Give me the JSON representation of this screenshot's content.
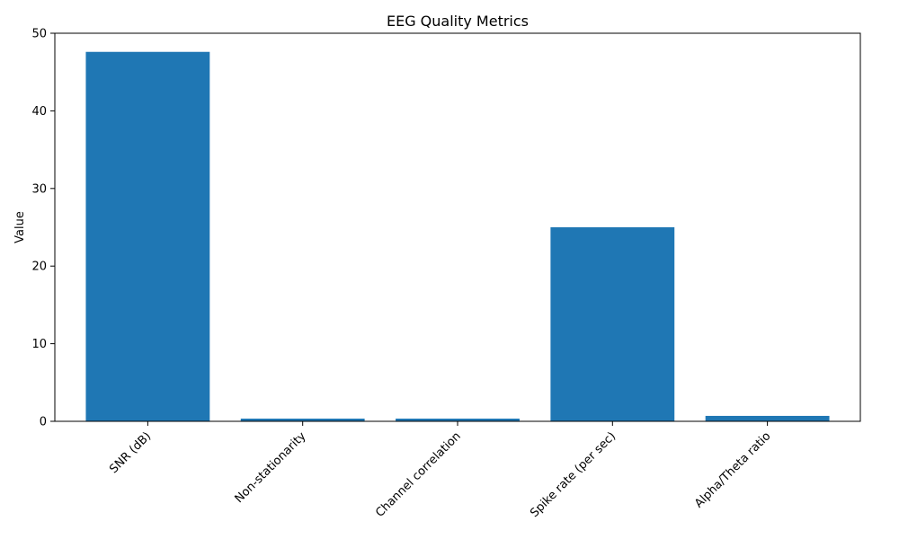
{
  "chart_data": {
    "type": "bar",
    "title": "EEG Quality Metrics",
    "xlabel": "",
    "ylabel": "Value",
    "categories": [
      "SNR (dB)",
      "Non-stationarity",
      "Channel correlation",
      "Spike rate (per sec)",
      "Alpha/Theta ratio"
    ],
    "values": [
      47.6,
      0.35,
      0.35,
      25.0,
      0.7
    ],
    "ylim": [
      0,
      50
    ],
    "yticks": [
      0,
      10,
      20,
      30,
      40,
      50
    ],
    "bar_color": "#1f77b4",
    "grid": false,
    "legend": "none"
  }
}
